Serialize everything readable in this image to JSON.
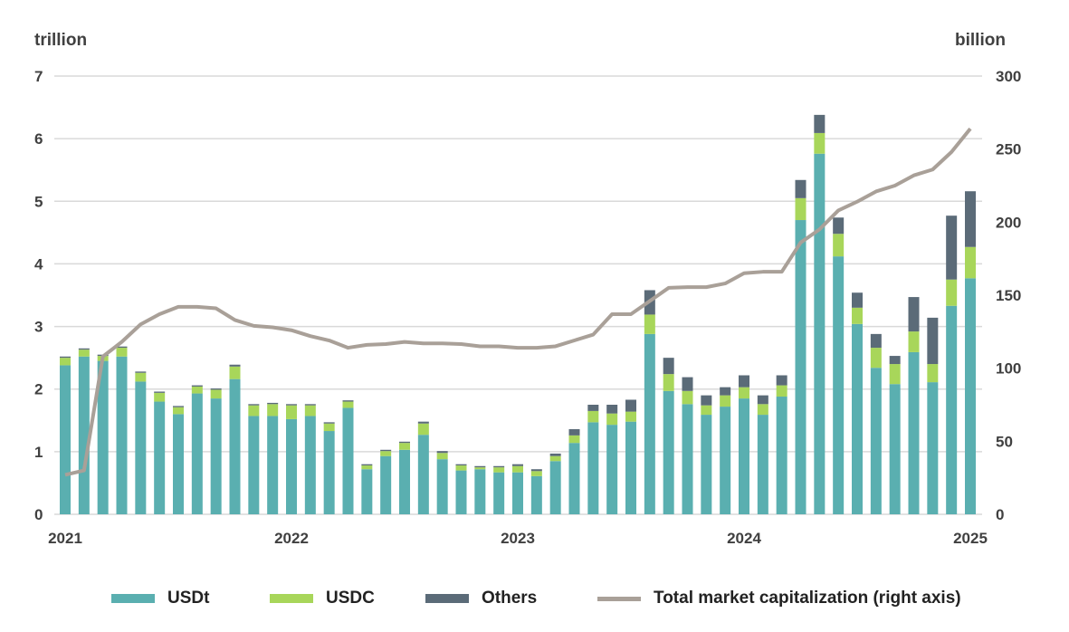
{
  "chart_data": {
    "type": "bar",
    "stacked": true,
    "left_unit": "trillion",
    "right_unit": "billion",
    "ylim": [
      0,
      7
    ],
    "y_ticks": [
      "0",
      "1",
      "2",
      "3",
      "4",
      "5",
      "6",
      "7"
    ],
    "y2lim": [
      0,
      300
    ],
    "y2_ticks": [
      "0",
      "50",
      "100",
      "150",
      "200",
      "250",
      "300"
    ],
    "x_tick_labels": [
      "2021",
      "2022",
      "2023",
      "2024",
      "2025"
    ],
    "grid": true,
    "legend_position": "bottom",
    "colors": {
      "USDt": "#5aafb0",
      "USDC": "#a8d65a",
      "Others": "#5b6b78",
      "line": "#a9a098"
    },
    "series": [
      {
        "name": "USDt",
        "values": [
          2.38,
          2.52,
          2.45,
          2.52,
          2.12,
          1.8,
          1.6,
          1.93,
          1.85,
          2.16,
          1.57,
          1.57,
          1.52,
          1.57,
          1.33,
          1.7,
          0.72,
          0.93,
          1.03,
          1.27,
          0.88,
          0.7,
          0.72,
          0.67,
          0.67,
          0.61,
          0.85,
          1.14,
          1.47,
          1.43,
          1.48,
          2.88,
          1.97,
          1.76,
          1.59,
          1.72,
          1.85,
          1.59,
          1.88,
          4.7,
          5.76,
          4.12,
          3.04,
          2.34,
          2.08,
          2.59,
          2.11,
          3.33,
          3.77
        ]
      },
      {
        "name": "USDC",
        "values": [
          0.12,
          0.11,
          0.08,
          0.14,
          0.14,
          0.14,
          0.11,
          0.11,
          0.14,
          0.2,
          0.17,
          0.19,
          0.22,
          0.17,
          0.12,
          0.1,
          0.06,
          0.08,
          0.11,
          0.18,
          0.1,
          0.08,
          0.03,
          0.08,
          0.1,
          0.08,
          0.08,
          0.12,
          0.18,
          0.18,
          0.16,
          0.31,
          0.27,
          0.21,
          0.15,
          0.18,
          0.18,
          0.17,
          0.18,
          0.35,
          0.33,
          0.36,
          0.26,
          0.32,
          0.32,
          0.33,
          0.29,
          0.42,
          0.5
        ]
      },
      {
        "name": "Others",
        "values": [
          0.02,
          0.02,
          0.02,
          0.02,
          0.02,
          0.02,
          0.02,
          0.02,
          0.02,
          0.03,
          0.02,
          0.02,
          0.02,
          0.02,
          0.02,
          0.02,
          0.02,
          0.02,
          0.02,
          0.03,
          0.03,
          0.02,
          0.02,
          0.02,
          0.03,
          0.03,
          0.04,
          0.1,
          0.1,
          0.14,
          0.19,
          0.39,
          0.26,
          0.22,
          0.16,
          0.13,
          0.19,
          0.14,
          0.16,
          0.29,
          0.29,
          0.26,
          0.24,
          0.22,
          0.13,
          0.55,
          0.74,
          1.02,
          0.89
        ]
      },
      {
        "name": "Total market capitalization (right axis)",
        "axis": "right",
        "type": "line",
        "values": [
          27,
          30,
          108,
          118,
          130,
          137,
          142,
          142,
          141,
          133,
          129,
          128,
          126,
          122,
          119,
          114,
          116,
          116.5,
          118,
          117,
          117,
          116.5,
          115,
          115,
          114,
          114,
          115,
          119,
          123,
          137,
          137,
          146,
          155,
          155.5,
          155.5,
          158,
          165,
          166,
          166,
          186,
          195,
          208,
          214,
          221,
          225,
          232,
          236,
          248,
          264
        ]
      }
    ]
  }
}
